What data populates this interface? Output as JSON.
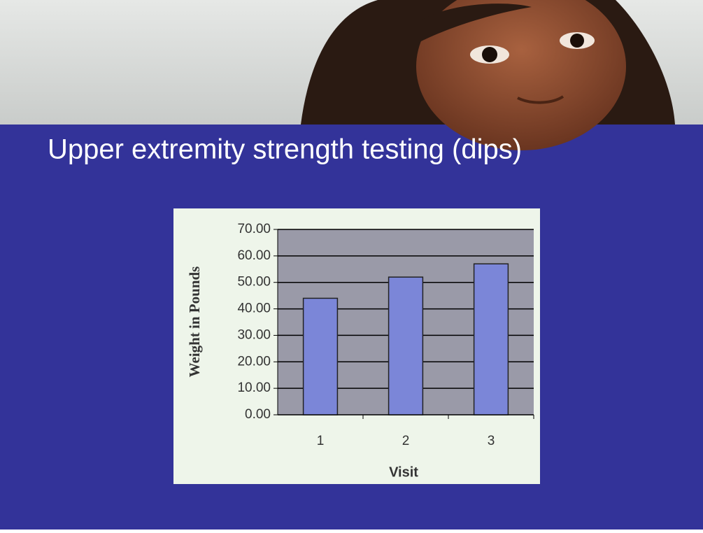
{
  "chart_data": {
    "type": "bar",
    "title": "Upper extremity strength testing (dips)",
    "x_label": "Visit",
    "y_label": "Weight in Pounds",
    "categories": [
      "1",
      "2",
      "3"
    ],
    "values": [
      44,
      52,
      57
    ],
    "color": "#7b86d8",
    "ylim": [
      0,
      70
    ],
    "yticks": [
      {
        "value": 0,
        "label": "0.00"
      },
      {
        "value": 10,
        "label": "10.00"
      },
      {
        "value": 20,
        "label": "20.00"
      },
      {
        "value": 30,
        "label": "30.00"
      },
      {
        "value": 40,
        "label": "40.00"
      },
      {
        "value": 50,
        "label": "50.00"
      },
      {
        "value": 60,
        "label": "60.00"
      },
      {
        "value": 70,
        "label": "70.00"
      }
    ],
    "grid": true
  }
}
